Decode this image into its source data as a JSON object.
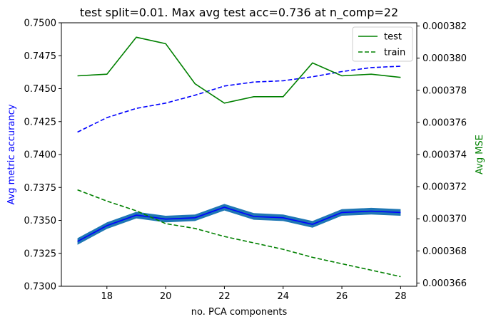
{
  "chart_data": {
    "type": "line",
    "title": "test split=0.01. Max avg test acc=0.736 at n_comp=22",
    "xlabel": "no. PCA components",
    "ylabel_left": "Avg metric accurancy",
    "ylabel_right": "Avg MSE",
    "x": [
      17,
      18,
      19,
      20,
      21,
      22,
      23,
      24,
      25,
      26,
      27,
      28
    ],
    "xticks": [
      18,
      20,
      22,
      24,
      26,
      28
    ],
    "xlim": [
      16.45,
      28.55
    ],
    "left_axis": {
      "ylim": [
        0.73,
        0.75
      ],
      "ticks": [
        0.73,
        0.7325,
        0.735,
        0.7375,
        0.74,
        0.7425,
        0.745,
        0.7475,
        0.75
      ],
      "tick_labels": [
        "0.7300",
        "0.7325",
        "0.7350",
        "0.7375",
        "0.7400",
        "0.7425",
        "0.7450",
        "0.7475",
        "0.7500"
      ],
      "series": [
        {
          "name": "test",
          "style": "solid",
          "color": "#0000ff",
          "band_color": "#1f77b4",
          "band_halfwidth": 0.00025,
          "values": [
            0.7334,
            0.7346,
            0.7354,
            0.7351,
            0.7352,
            0.736,
            0.7353,
            0.7352,
            0.7347,
            0.7356,
            0.7357,
            0.7356
          ]
        },
        {
          "name": "train",
          "style": "dashed",
          "color": "#0000ff",
          "values": [
            0.7417,
            0.7428,
            0.7435,
            0.7439,
            0.7445,
            0.7452,
            0.7455,
            0.7456,
            0.7459,
            0.7463,
            0.7466,
            0.7467
          ]
        }
      ]
    },
    "right_axis": {
      "ylim": [
        0.0003658,
        0.0003822
      ],
      "ticks": [
        0.000366,
        0.000368,
        0.00037,
        0.000372,
        0.000374,
        0.000376,
        0.000378,
        0.00038,
        0.000382
      ],
      "tick_labels": [
        "0.000366",
        "0.000368",
        "0.000370",
        "0.000372",
        "0.000374",
        "0.000376",
        "0.000378",
        "0.000380",
        "0.000382"
      ],
      "series": [
        {
          "name": "test",
          "style": "solid",
          "color": "#008000",
          "values": [
            0.0003789,
            0.000379,
            0.0003813,
            0.0003809,
            0.0003784,
            0.0003772,
            0.0003776,
            0.0003776,
            0.0003797,
            0.0003789,
            0.000379,
            0.0003788
          ]
        },
        {
          "name": "train",
          "style": "dashed",
          "color": "#008000",
          "values": [
            0.0003718,
            0.0003711,
            0.0003705,
            0.0003697,
            0.0003694,
            0.0003689,
            0.0003685,
            0.0003681,
            0.0003676,
            0.0003672,
            0.0003668,
            0.0003664
          ]
        }
      ]
    },
    "legend": {
      "position": "top-right",
      "entries": [
        {
          "label": "test",
          "style": "solid",
          "color": "#008000"
        },
        {
          "label": "train",
          "style": "dashed",
          "color": "#008000"
        }
      ]
    },
    "colors": {
      "left_axis_label": "#0000ff",
      "right_axis_label": "#008000",
      "accuracy_band": "#1f77b4"
    },
    "grid": false
  }
}
